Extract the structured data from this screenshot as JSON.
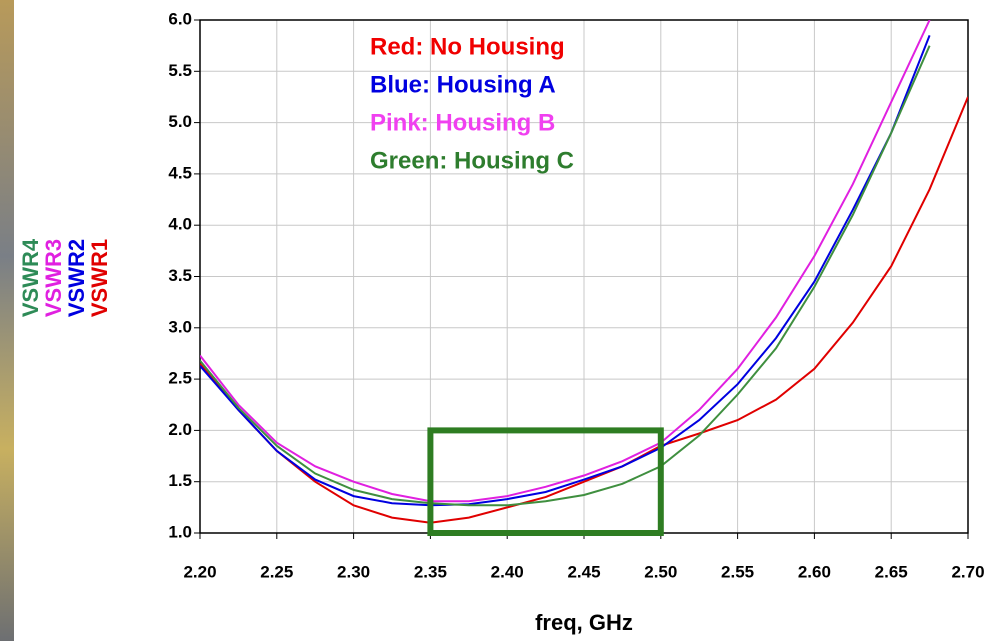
{
  "chart_data": {
    "type": "line",
    "x_label": "freq, GHz",
    "x": [
      2.2,
      2.225,
      2.25,
      2.275,
      2.3,
      2.325,
      2.35,
      2.375,
      2.4,
      2.425,
      2.45,
      2.475,
      2.5,
      2.525,
      2.55,
      2.575,
      2.6,
      2.625,
      2.65,
      2.675,
      2.7
    ],
    "series": [
      {
        "name": "VSWR4",
        "color": "#3f8f3f",
        "label_color": "#2e8b57",
        "values": [
          2.68,
          2.22,
          1.85,
          1.58,
          1.42,
          1.33,
          1.29,
          1.27,
          1.27,
          1.31,
          1.37,
          1.48,
          1.65,
          1.95,
          2.35,
          2.8,
          3.4,
          4.1,
          4.9,
          5.75,
          null
        ]
      },
      {
        "name": "VSWR3",
        "color": "#e020e0",
        "label_color": "#e020e0",
        "values": [
          2.73,
          2.25,
          1.88,
          1.65,
          1.5,
          1.38,
          1.31,
          1.31,
          1.36,
          1.45,
          1.56,
          1.7,
          1.88,
          2.2,
          2.6,
          3.1,
          3.7,
          4.4,
          5.2,
          6.0,
          null
        ]
      },
      {
        "name": "VSWR2",
        "color": "#0000e0",
        "label_color": "#0000e0",
        "values": [
          2.63,
          2.2,
          1.8,
          1.52,
          1.36,
          1.29,
          1.27,
          1.28,
          1.33,
          1.4,
          1.52,
          1.65,
          1.83,
          2.1,
          2.45,
          2.9,
          3.45,
          4.15,
          4.9,
          5.85,
          null
        ]
      },
      {
        "name": "VSWR1",
        "color": "#e00000",
        "label_color": "#e00000",
        "values": [
          2.65,
          2.2,
          1.8,
          1.5,
          1.27,
          1.15,
          1.1,
          1.15,
          1.25,
          1.35,
          1.5,
          1.65,
          1.85,
          1.97,
          2.1,
          2.3,
          2.6,
          3.05,
          3.6,
          4.35,
          5.25
        ]
      }
    ],
    "annotations": [
      {
        "text": "Red: No Housing",
        "color": "#f00000"
      },
      {
        "text": "Blue: Housing A",
        "color": "#0000e0"
      },
      {
        "text": "Pink: Housing B",
        "color": "#f040f0"
      },
      {
        "text": "Green: Housing C",
        "color": "#2e7d2e"
      }
    ],
    "highlight_box": {
      "xlim": [
        2.35,
        2.5
      ],
      "ylim": [
        1.0,
        2.0
      ],
      "color": "#2e7d22"
    },
    "xlim": [
      2.2,
      2.7
    ],
    "ylim": [
      1.0,
      6.0
    ],
    "xticks": [
      {
        "value": 2.2,
        "label": "2.20"
      },
      2.25,
      {
        "value": 2.3,
        "label": "2.30"
      },
      2.35,
      {
        "value": 2.4,
        "label": "2.40"
      },
      2.45,
      {
        "value": 2.5,
        "label": "2.50"
      },
      2.55,
      {
        "value": 2.6,
        "label": "2.60"
      },
      2.65,
      {
        "value": 2.7,
        "label": "2.70"
      }
    ],
    "yticks": [
      {
        "value": 1,
        "label": "1.0"
      },
      1.5,
      {
        "value": 2,
        "label": "2.0"
      },
      2.5,
      {
        "value": 3,
        "label": "3.0"
      },
      3.5,
      {
        "value": 4,
        "label": "4.0"
      },
      4.5,
      {
        "value": 5,
        "label": "5.0"
      },
      5.5,
      {
        "value": 6,
        "label": "6.0"
      }
    ],
    "grid": true
  }
}
